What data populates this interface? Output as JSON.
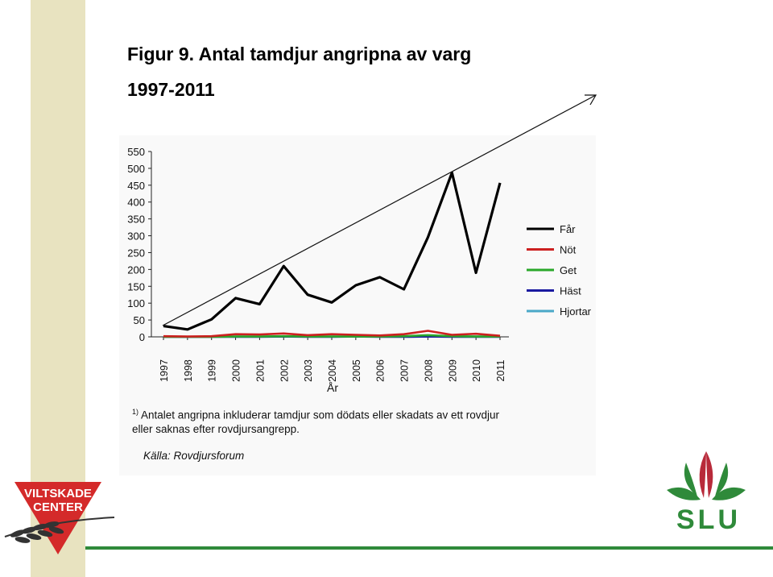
{
  "title": "Figur 9. Antal tamdjur angripna av varg",
  "subtitle": "1997-2011",
  "chart_data": {
    "type": "line",
    "x": [
      "1997",
      "1998",
      "1999",
      "2000",
      "2001",
      "2002",
      "2003",
      "2004",
      "2005",
      "2006",
      "2007",
      "2008",
      "2009",
      "2010",
      "2011"
    ],
    "xlabel": "År",
    "ylabel": "",
    "ylim": [
      0,
      550
    ],
    "yticks": [
      0,
      50,
      100,
      150,
      200,
      250,
      300,
      350,
      400,
      450,
      500,
      550
    ],
    "grid": false,
    "legend_position": "right",
    "series": [
      {
        "name": "Får",
        "color": "#000000",
        "values": [
          32,
          22,
          52,
          115,
          97,
          210,
          125,
          102,
          153,
          177,
          141,
          295,
          487,
          190,
          457
        ]
      },
      {
        "name": "Nöt",
        "color": "#cc2020",
        "values": [
          2,
          1,
          2,
          8,
          7,
          10,
          5,
          8,
          6,
          4,
          8,
          18,
          6,
          9,
          3
        ]
      },
      {
        "name": "Get",
        "color": "#2aa82a",
        "values": [
          0,
          0,
          0,
          1,
          1,
          2,
          1,
          1,
          1,
          1,
          2,
          5,
          2,
          1,
          1
        ]
      },
      {
        "name": "Häst",
        "color": "#1a1aa0",
        "values": [
          0,
          0,
          0,
          0,
          0,
          1,
          0,
          0,
          1,
          0,
          0,
          1,
          0,
          0,
          0
        ]
      },
      {
        "name": "Hjortar",
        "color": "#4aa8c8",
        "values": [
          1,
          0,
          1,
          1,
          1,
          1,
          1,
          1,
          1,
          1,
          1,
          2,
          1,
          1,
          1
        ]
      }
    ],
    "annotations": [
      "trend-arrow"
    ]
  },
  "footnote": {
    "marker": "1)",
    "text": "Antalet angripna inkluderar tamdjur som dödats eller skadats av ett rovdjur eller saknas efter rovdjursangrepp."
  },
  "source": "Källa: Rovdjursforum",
  "logos": {
    "left": {
      "name": "viltskade-center-logo",
      "line1": "VILTSKADE",
      "line2": "CENTER",
      "color": "#d42a2a"
    },
    "right": {
      "name": "slu-logo",
      "text": "SLU",
      "green": "#2f8a3a",
      "red": "#b82a3a"
    }
  },
  "colors": {
    "band": "#e8e3c0",
    "line": "#2f8a3a"
  }
}
